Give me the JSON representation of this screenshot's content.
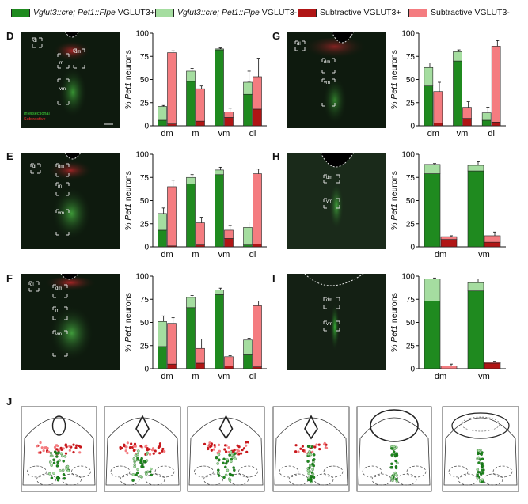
{
  "legend": [
    {
      "italic": "Vglut3::cre; Pet1::Flpe",
      "suffix": " VGLUT3+",
      "color": "#1f8a1f"
    },
    {
      "italic": "Vglut3::cre; Pet1::Flpe",
      "suffix": " VGLUT3-",
      "color": "#a5dda0"
    },
    {
      "italic": "",
      "suffix": "Subtractive VGLUT3+",
      "color": "#b01515"
    },
    {
      "italic": "",
      "suffix": "Subtractive VGLUT3-",
      "color": "#f47c80"
    }
  ],
  "panel_letters": {
    "d": "D",
    "e": "E",
    "f": "F",
    "g": "G",
    "h": "H",
    "i": "I",
    "j": "J"
  },
  "micro_labels": {
    "d": {
      "boxes": [
        "dl",
        "dm",
        "m",
        "vm"
      ],
      "intersectional": "Intersectional",
      "subtractive": "Subtractive"
    },
    "e": {
      "boxes": [
        "dl",
        "dm",
        "m",
        "vm"
      ]
    },
    "f": {
      "boxes": [
        "dl",
        "dm",
        "m",
        "vm"
      ]
    },
    "g": {
      "boxes": [
        "dl",
        "dm",
        "vm"
      ]
    },
    "h": {
      "boxes": [
        "dm",
        "vm"
      ]
    },
    "i": {
      "boxes": [
        "dm",
        "vm"
      ]
    }
  },
  "colors": {
    "vglut3_pos_intersectional": "#1f8a1f",
    "vglut3_neg_intersectional": "#a5dda0",
    "vglut3_pos_subtractive": "#b01515",
    "vglut3_neg_subtractive": "#f47c80"
  },
  "chart_data": [
    {
      "id": "D",
      "type": "bar",
      "stacked": true,
      "categories": [
        "dm",
        "m",
        "vm",
        "dl"
      ],
      "ylabel_prefix": "% ",
      "ylabel_italic": "Pet1",
      "ylabel_suffix": " neurons",
      "ylim": [
        0,
        100
      ],
      "yticks": [
        "0",
        "25",
        "50",
        "75",
        "100"
      ],
      "series": [
        {
          "name": "Intersectional VGLUT3+",
          "values": [
            6,
            48,
            82,
            34
          ],
          "errors": [
            2,
            3,
            2,
            14
          ]
        },
        {
          "name": "Intersectional VGLUT3-",
          "values": [
            15,
            11,
            1,
            13
          ],
          "errors": [
            1,
            3,
            1,
            12
          ]
        },
        {
          "name": "Subtractive VGLUT3+",
          "values": [
            2,
            5,
            9,
            18
          ],
          "errors": [
            1,
            2,
            4,
            6
          ]
        },
        {
          "name": "Subtractive VGLUT3-",
          "values": [
            77,
            35,
            6,
            35
          ],
          "errors": [
            2,
            3,
            4,
            20
          ]
        }
      ]
    },
    {
      "id": "E",
      "type": "bar",
      "stacked": true,
      "categories": [
        "dm",
        "m",
        "vm",
        "dl"
      ],
      "ylabel_prefix": "% ",
      "ylabel_italic": "Pet1",
      "ylabel_suffix": " neurons",
      "ylim": [
        0,
        100
      ],
      "yticks": [
        "0",
        "25",
        "50",
        "75",
        "100"
      ],
      "series": [
        {
          "name": "Intersectional VGLUT3+",
          "values": [
            18,
            68,
            78,
            2
          ],
          "errors": [
            2,
            4,
            3,
            1
          ]
        },
        {
          "name": "Intersectional VGLUT3-",
          "values": [
            18,
            7,
            5,
            19
          ],
          "errors": [
            6,
            3,
            3,
            6
          ]
        },
        {
          "name": "Subtractive VGLUT3+",
          "values": [
            1,
            2,
            9,
            3
          ],
          "errors": [
            1,
            1,
            5,
            1
          ]
        },
        {
          "name": "Subtractive VGLUT3-",
          "values": [
            64,
            24,
            9,
            76
          ],
          "errors": [
            7,
            6,
            5,
            5
          ]
        }
      ]
    },
    {
      "id": "F",
      "type": "bar",
      "stacked": true,
      "categories": [
        "dm",
        "m",
        "vm",
        "dl"
      ],
      "ylabel_prefix": "% ",
      "ylabel_italic": "Pet1",
      "ylabel_suffix": " neurons",
      "ylim": [
        0,
        100
      ],
      "yticks": [
        "0",
        "25",
        "50",
        "75",
        "100"
      ],
      "series": [
        {
          "name": "Intersectional VGLUT3+",
          "values": [
            24,
            66,
            80,
            15
          ],
          "errors": [
            1,
            2,
            2,
            3
          ]
        },
        {
          "name": "Intersectional VGLUT3-",
          "values": [
            27,
            11,
            5,
            16
          ],
          "errors": [
            6,
            2,
            2,
            2
          ]
        },
        {
          "name": "Subtractive VGLUT3+",
          "values": [
            5,
            6,
            3,
            2
          ],
          "errors": [
            2,
            2,
            1,
            1
          ]
        },
        {
          "name": "Subtractive VGLUT3-",
          "values": [
            44,
            16,
            10,
            66
          ],
          "errors": [
            6,
            10,
            1,
            5
          ]
        }
      ]
    },
    {
      "id": "G",
      "type": "bar",
      "stacked": true,
      "categories": [
        "dm",
        "vm",
        "dl"
      ],
      "ylabel_prefix": "% ",
      "ylabel_italic": "Pet1",
      "ylabel_suffix": " neurons",
      "ylim": [
        0,
        100
      ],
      "yticks": [
        "0",
        "25",
        "50",
        "75",
        "100"
      ],
      "series": [
        {
          "name": "Intersectional VGLUT3+",
          "values": [
            43,
            70,
            6
          ],
          "errors": [
            5,
            3,
            2
          ]
        },
        {
          "name": "Intersectional VGLUT3-",
          "values": [
            20,
            10,
            8
          ],
          "errors": [
            5,
            2,
            6
          ]
        },
        {
          "name": "Subtractive VGLUT3+",
          "values": [
            3,
            8,
            4
          ],
          "errors": [
            1,
            4,
            1
          ]
        },
        {
          "name": "Subtractive VGLUT3-",
          "values": [
            34,
            12,
            82
          ],
          "errors": [
            10,
            6,
            6
          ]
        }
      ]
    },
    {
      "id": "H",
      "type": "bar",
      "stacked": true,
      "categories": [
        "dm",
        "vm"
      ],
      "ylabel_prefix": "% ",
      "ylabel_italic": "Pet1",
      "ylabel_suffix": " neurons",
      "ylim": [
        0,
        100
      ],
      "yticks": [
        "0",
        "25",
        "50",
        "75",
        "100"
      ],
      "series": [
        {
          "name": "Intersectional VGLUT3+",
          "values": [
            79,
            82
          ],
          "errors": [
            1,
            2
          ]
        },
        {
          "name": "Intersectional VGLUT3-",
          "values": [
            10,
            6
          ],
          "errors": [
            1,
            4
          ]
        },
        {
          "name": "Subtractive VGLUT3+",
          "values": [
            8,
            5
          ],
          "errors": [
            2,
            3
          ]
        },
        {
          "name": "Subtractive VGLUT3-",
          "values": [
            3,
            7
          ],
          "errors": [
            1,
            4
          ]
        }
      ]
    },
    {
      "id": "I",
      "type": "bar",
      "stacked": true,
      "categories": [
        "dm",
        "vm"
      ],
      "ylabel_prefix": "% ",
      "ylabel_italic": "Pet1",
      "ylabel_suffix": " neurons",
      "ylim": [
        0,
        100
      ],
      "yticks": [
        "0",
        "25",
        "50",
        "75",
        "100"
      ],
      "series": [
        {
          "name": "Intersectional VGLUT3+",
          "values": [
            73,
            84
          ],
          "errors": [
            2,
            3
          ]
        },
        {
          "name": "Intersectional VGLUT3-",
          "values": [
            24,
            9
          ],
          "errors": [
            1,
            4
          ]
        },
        {
          "name": "Subtractive VGLUT3+",
          "values": [
            0,
            6
          ],
          "errors": [
            0,
            1
          ]
        },
        {
          "name": "Subtractive VGLUT3-",
          "values": [
            3,
            1
          ],
          "errors": [
            2,
            1
          ]
        }
      ]
    }
  ]
}
